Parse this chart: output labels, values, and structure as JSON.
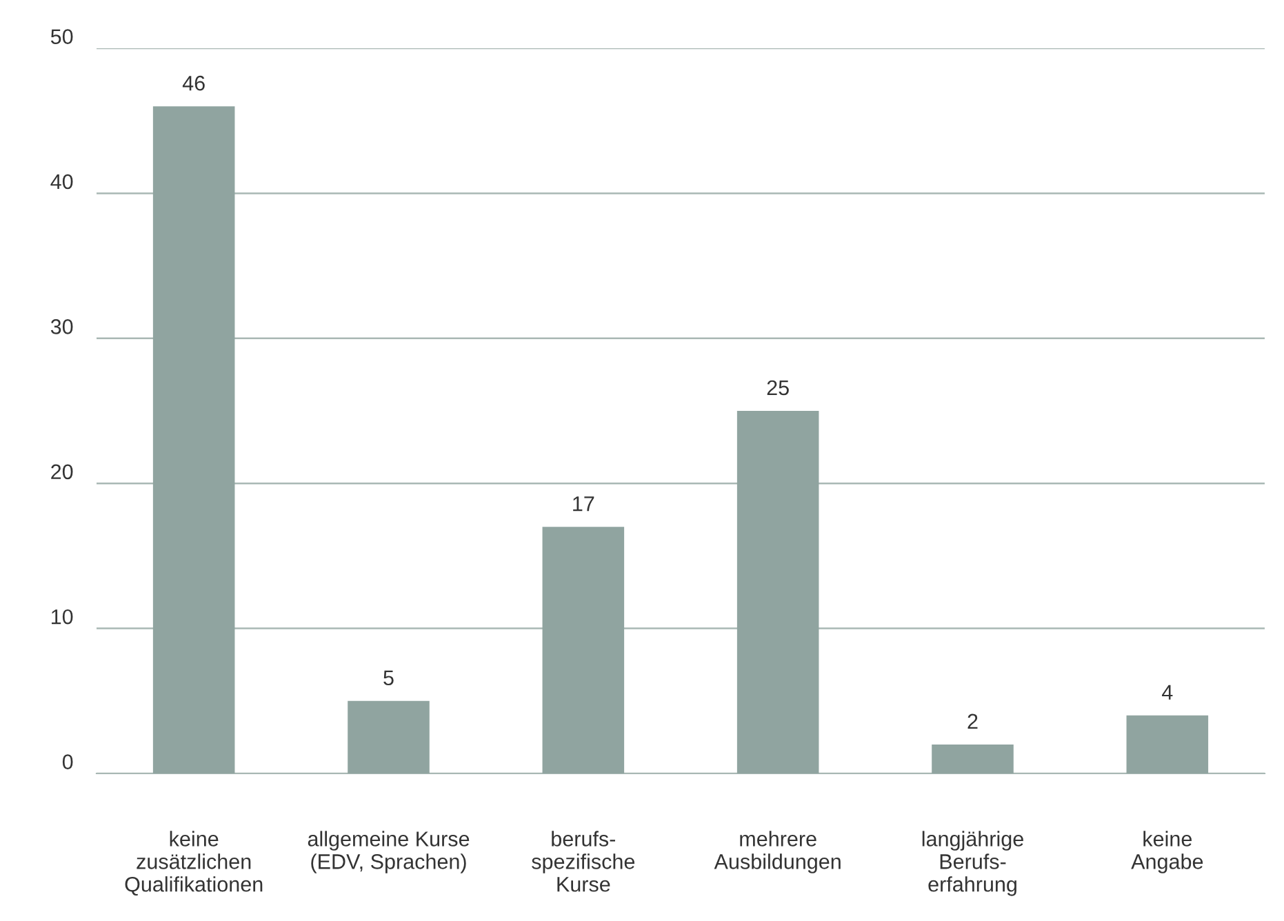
{
  "chart_data": {
    "type": "bar",
    "categories": [
      "keine\nzusätzlichen\nQualifikationen",
      "allgemeine Kurse\n(EDV, Sprachen)",
      "berufs-\nspezifische\nKurse",
      "mehrere\nAusbildungen",
      "langjährige\nBerufs-\nerfahrung",
      "keine\nAngabe"
    ],
    "values": [
      46,
      5,
      17,
      25,
      2,
      4
    ],
    "color": "#90a4a0",
    "ylim": [
      0,
      50
    ],
    "yticks": [
      0,
      10,
      20,
      30,
      40,
      50
    ],
    "grid": "y",
    "data_labels": true
  }
}
